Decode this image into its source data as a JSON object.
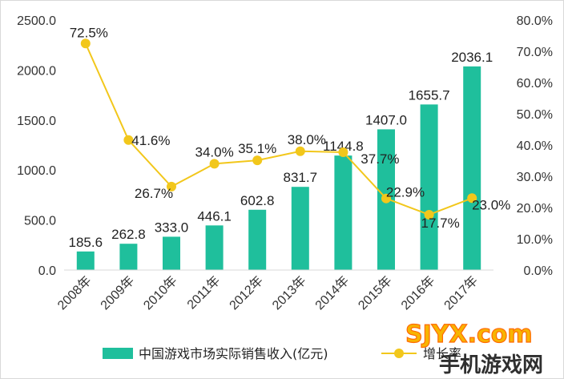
{
  "chart_data": {
    "type": "bar+line",
    "categories": [
      "2008年",
      "2009年",
      "2010年",
      "2011年",
      "2012年",
      "2013年",
      "2014年",
      "2015年",
      "2016年",
      "2017年"
    ],
    "series": [
      {
        "name": "中国游戏市场实际销售收入(亿元)",
        "type": "bar",
        "axis": "left",
        "values": [
          185.6,
          262.8,
          333.0,
          446.1,
          602.8,
          831.7,
          1144.8,
          1407.0,
          1655.7,
          2036.1
        ],
        "labels": [
          "185.6",
          "262.8",
          "333.0",
          "446.1",
          "602.8",
          "831.7",
          "1144.8",
          "1407.0",
          "1655.7",
          "2036.1"
        ]
      },
      {
        "name": "增长率",
        "type": "line",
        "axis": "right",
        "values": [
          72.5,
          41.6,
          26.7,
          34.0,
          35.1,
          38.0,
          37.7,
          22.9,
          17.7,
          23.0
        ],
        "labels": [
          "72.5%",
          "41.6%",
          "26.7%",
          "34.0%",
          "35.1%",
          "38.0%",
          "37.7%",
          "22.9%",
          "17.7%",
          "23.0%"
        ]
      }
    ],
    "y_left": {
      "ylim": [
        0,
        2500
      ],
      "ticks": [
        0,
        500,
        1000,
        1500,
        2000,
        2500
      ],
      "tick_labels": [
        "0.0",
        "500.0",
        "1000.0",
        "1500.0",
        "2000.0",
        "2500.0"
      ]
    },
    "y_right": {
      "ylim": [
        0,
        80
      ],
      "ticks": [
        0,
        10,
        20,
        30,
        40,
        50,
        60,
        70,
        80
      ],
      "tick_labels": [
        "0.0%",
        "10.0%",
        "20.0%",
        "30.0%",
        "40.0%",
        "50.0%",
        "60.0%",
        "70.0%",
        "80.0%"
      ]
    },
    "grid": false,
    "legend_position": "bottom",
    "colors": {
      "bar": "#1fbf9c",
      "line": "#f2c71b"
    }
  },
  "watermark": {
    "main": "SJYX.com",
    "sub": "手机游戏网"
  }
}
